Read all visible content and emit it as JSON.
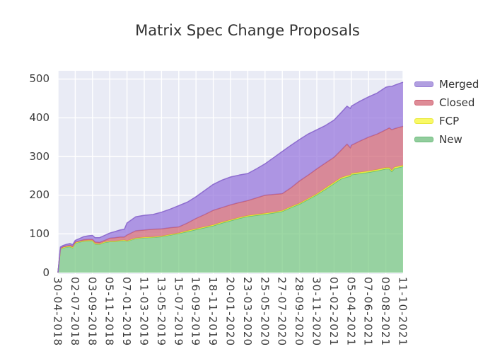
{
  "chart_data": {
    "type": "area",
    "stacked": true,
    "title": "Matrix Spec Change Proposals",
    "xlabel": "",
    "ylabel": "",
    "ylim": [
      0,
      500
    ],
    "y_ticks": [
      0,
      100,
      200,
      300,
      400,
      500
    ],
    "x_tick_labels": [
      "30-04-2018",
      "02-07-2018",
      "03-09-2018",
      "05-11-2018",
      "07-01-2019",
      "11-03-2019",
      "13-05-2019",
      "15-07-2019",
      "16-09-2019",
      "18-11-2019",
      "20-01-2020",
      "23-03-2020",
      "25-05-2020",
      "27-07-2020",
      "28-09-2020",
      "30-11-2020",
      "01-02-2021",
      "05-04-2021",
      "07-06-2021",
      "09-08-2021",
      "11-10-2021"
    ],
    "grid": true,
    "plot_bg": "#e9ebf5",
    "grid_color": "#ffffff",
    "fill_opacity": 0.7,
    "legend_position": "right-top-outside",
    "x": [
      0,
      0.06,
      0.14,
      0.3,
      0.5,
      0.7,
      0.85,
      1.0,
      1.25,
      1.5,
      1.75,
      2.0,
      2.15,
      2.4,
      2.7,
      3.0,
      3.3,
      3.6,
      3.85,
      4.0,
      4.5,
      5.0,
      5.5,
      6.0,
      6.5,
      7.0,
      7.5,
      8.0,
      8.5,
      9.0,
      9.5,
      10.0,
      10.5,
      11.0,
      11.5,
      12.0,
      12.5,
      13.0,
      13.5,
      14.0,
      14.5,
      15.0,
      15.5,
      16.0,
      16.4,
      16.75,
      16.95,
      17.0,
      17.5,
      18.0,
      18.5,
      19.0,
      19.2,
      19.35,
      19.5,
      20.0
    ],
    "series": [
      {
        "name": "New",
        "color": "#73c87d",
        "edge": "#5fb873",
        "values": [
          0,
          25,
          60,
          64,
          66,
          67,
          64,
          76,
          79,
          81,
          82,
          82,
          74,
          73,
          78,
          80,
          80,
          82,
          83,
          81,
          88,
          90,
          91,
          93,
          97,
          101,
          106,
          111,
          116,
          121,
          128,
          134,
          140,
          145,
          148,
          151,
          154,
          158,
          168,
          177,
          189,
          201,
          215,
          230,
          242,
          247,
          249,
          253,
          256,
          259,
          263,
          268,
          268,
          261,
          269,
          274
        ]
      },
      {
        "name": "FCP",
        "color": "#ffff29",
        "edge": "#e9e92c",
        "values": [
          0,
          1,
          1,
          1,
          1,
          1,
          1,
          1,
          1,
          1,
          1,
          1,
          1,
          1,
          1,
          1,
          1,
          1,
          1,
          1,
          1,
          1,
          1,
          1,
          1,
          1,
          2,
          2,
          2,
          2,
          2,
          2,
          2,
          2,
          2,
          2,
          2,
          2,
          2,
          2,
          2,
          2,
          3,
          3,
          3,
          3,
          3,
          3,
          3,
          3,
          3,
          3,
          3,
          3,
          3,
          3
        ]
      },
      {
        "name": "Closed",
        "color": "#d06070",
        "edge": "#c85f6f",
        "values": [
          0,
          1,
          2,
          2,
          2,
          3,
          3,
          2,
          2,
          3,
          3,
          3,
          4,
          4,
          4,
          8,
          9,
          9,
          8,
          15,
          19,
          19,
          20,
          19,
          18,
          16,
          20,
          27,
          32,
          38,
          38,
          39,
          39,
          39,
          43,
          47,
          46,
          44,
          49,
          58,
          61,
          65,
          65,
          65,
          71,
          82,
          70,
          73,
          81,
          88,
          92,
          98,
          103,
          105,
          100,
          101
        ]
      },
      {
        "name": "Merged",
        "color": "#9370db",
        "edge": "#8a68ce",
        "values": [
          0,
          1,
          3,
          3,
          4,
          4,
          4,
          4,
          6,
          8,
          9,
          10,
          11,
          12,
          13,
          13,
          16,
          18,
          20,
          31,
          36,
          38,
          38,
          43,
          48,
          55,
          54,
          56,
          62,
          67,
          71,
          72,
          71,
          70,
          75,
          81,
          95,
          109,
          110,
          107,
          106,
          101,
          97,
          96,
          97,
          98,
          102,
          101,
          103,
          104,
          106,
          110,
          107,
          112,
          112,
          114
        ]
      }
    ],
    "legend": [
      {
        "label": "Merged",
        "swatch": "#b19fe0",
        "edge": "#9b82d6"
      },
      {
        "label": "Closed",
        "swatch": "#de8c97",
        "edge": "#d06070"
      },
      {
        "label": "FCP",
        "swatch": "#f9f966",
        "edge": "#e8e83a"
      },
      {
        "label": "New",
        "swatch": "#92cd9d",
        "edge": "#6dbd7d"
      }
    ]
  }
}
